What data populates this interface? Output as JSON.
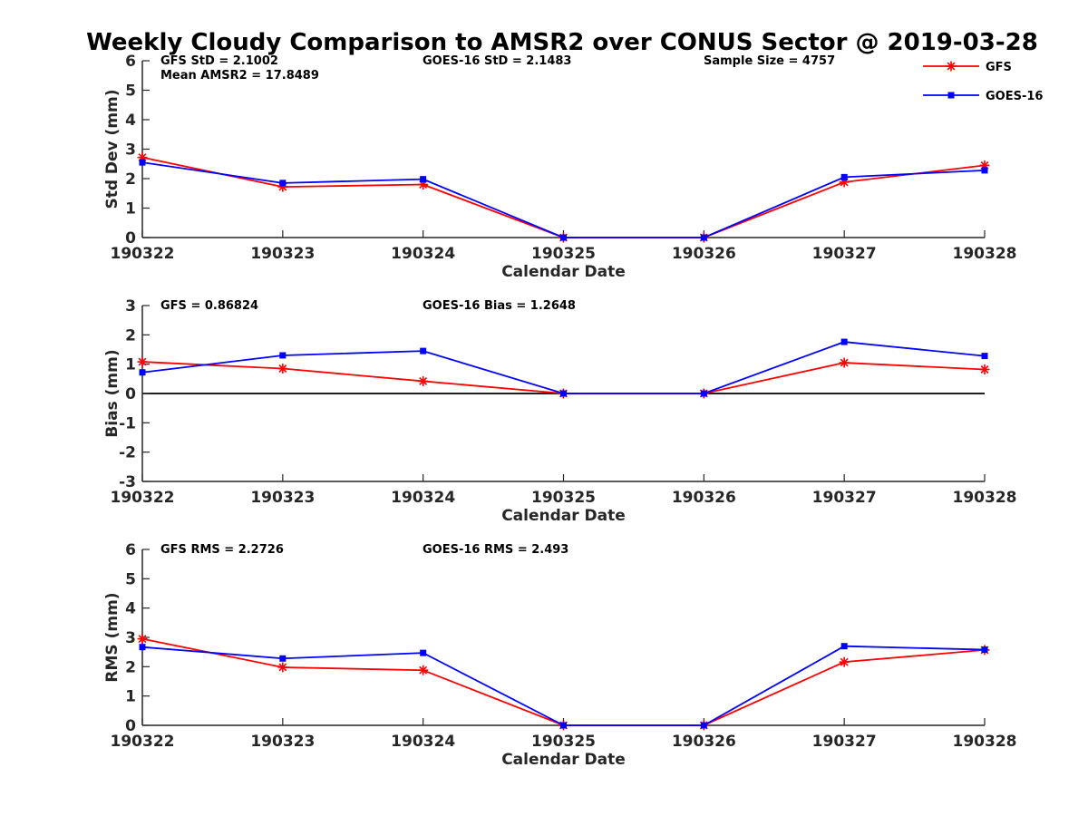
{
  "title": "Weekly Cloudy Comparison to AMSR2 over CONUS Sector @ 2019-03-28",
  "legend": {
    "placement": "top-right",
    "entries": [
      {
        "label": "GFS",
        "color": "#ff0000",
        "marker": "asterisk"
      },
      {
        "label": "GOES-16",
        "color": "#0000ff",
        "marker": "square"
      }
    ]
  },
  "chart_data": [
    {
      "type": "line",
      "xlabel": "Calendar Date",
      "ylabel": "Std Dev (mm)",
      "ylim": [
        0,
        6
      ],
      "yticks": [
        "0",
        "1",
        "2",
        "3",
        "4",
        "5",
        "6"
      ],
      "categories": [
        "190322",
        "190323",
        "190324",
        "190325",
        "190326",
        "190327",
        "190328"
      ],
      "zero_line": false,
      "annotations": [
        {
          "text": "GFS StD = 2.1002",
          "row": 0,
          "col": 0
        },
        {
          "text": "Mean AMSR2 = 17.8489",
          "row": 1,
          "col": 0
        },
        {
          "text": "GOES-16 StD = 2.1483",
          "row": 0,
          "col": 1
        },
        {
          "text": "Sample Size = 4757",
          "row": 0,
          "col": 2
        }
      ],
      "series": [
        {
          "name": "GFS",
          "color": "#ff0000",
          "marker": "asterisk",
          "values": [
            2.72,
            1.72,
            1.8,
            0,
            0,
            1.88,
            2.45
          ]
        },
        {
          "name": "GOES-16",
          "color": "#0000ff",
          "marker": "square",
          "values": [
            2.55,
            1.85,
            1.98,
            0,
            0,
            2.05,
            2.28
          ]
        }
      ]
    },
    {
      "type": "line",
      "xlabel": "Calendar Date",
      "ylabel": "Bias (mm)",
      "ylim": [
        -3,
        3
      ],
      "yticks": [
        "-3",
        "-2",
        "-1",
        "0",
        "1",
        "2",
        "3"
      ],
      "categories": [
        "190322",
        "190323",
        "190324",
        "190325",
        "190326",
        "190327",
        "190328"
      ],
      "zero_line": true,
      "annotations": [
        {
          "text": "GFS = 0.86824",
          "row": 0,
          "col": 0
        },
        {
          "text": "GOES-16 Bias  = 1.2648",
          "row": 0,
          "col": 1
        }
      ],
      "series": [
        {
          "name": "GFS",
          "color": "#ff0000",
          "marker": "asterisk",
          "values": [
            1.08,
            0.85,
            0.42,
            0,
            0,
            1.05,
            0.82
          ]
        },
        {
          "name": "GOES-16",
          "color": "#0000ff",
          "marker": "square",
          "values": [
            0.72,
            1.3,
            1.45,
            0,
            0,
            1.76,
            1.28
          ]
        }
      ]
    },
    {
      "type": "line",
      "xlabel": "Calendar Date",
      "ylabel": "RMS (mm)",
      "ylim": [
        0,
        6
      ],
      "yticks": [
        "0",
        "1",
        "2",
        "3",
        "4",
        "5",
        "6"
      ],
      "categories": [
        "190322",
        "190323",
        "190324",
        "190325",
        "190326",
        "190327",
        "190328"
      ],
      "zero_line": false,
      "annotations": [
        {
          "text": "GFS RMS = 2.2726",
          "row": 0,
          "col": 0
        },
        {
          "text": "GOES-16 RMS = 2.493",
          "row": 0,
          "col": 1
        }
      ],
      "series": [
        {
          "name": "GFS",
          "color": "#ff0000",
          "marker": "asterisk",
          "values": [
            2.95,
            1.98,
            1.88,
            0,
            0,
            2.16,
            2.57
          ]
        },
        {
          "name": "GOES-16",
          "color": "#0000ff",
          "marker": "square",
          "values": [
            2.67,
            2.28,
            2.47,
            0,
            0,
            2.7,
            2.58
          ]
        }
      ]
    }
  ]
}
